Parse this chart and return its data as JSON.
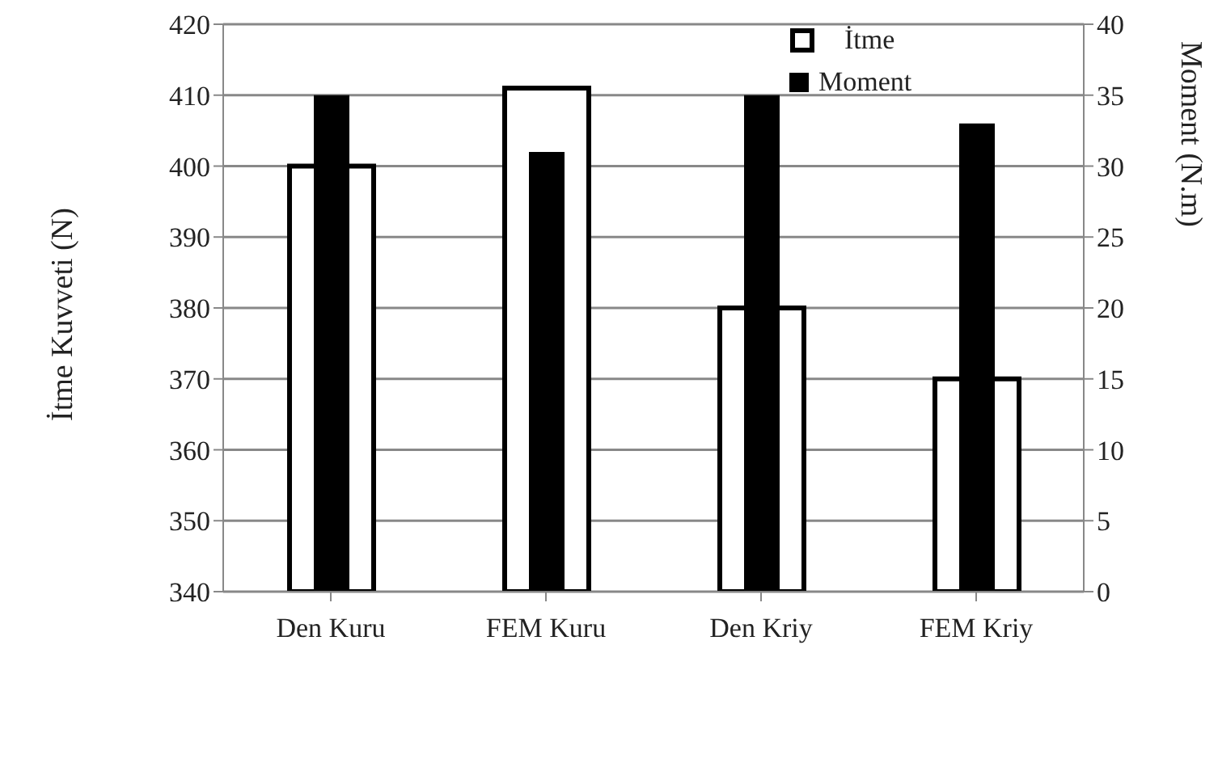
{
  "chart_data": {
    "type": "bar",
    "categories": [
      "Den Kuru",
      "FEM Kuru",
      "Den Kriy",
      "FEM Kriy"
    ],
    "series": [
      {
        "name": "İtme",
        "color": "#ffffff",
        "values": [
          400,
          411,
          380,
          370
        ]
      },
      {
        "name": "Moment",
        "color": "#000000",
        "axis": "y2",
        "values": [
          35,
          31,
          35,
          33
        ]
      }
    ],
    "ylabel": "İtme Kuvveti (N)",
    "y2label": "Moment (N.m)",
    "ylim": [
      340,
      420
    ],
    "yticks": [
      340,
      350,
      360,
      370,
      380,
      390,
      400,
      410,
      420
    ],
    "y2lim": [
      0,
      40
    ],
    "y2ticks": [
      0,
      5,
      10,
      15,
      20,
      25,
      30,
      35,
      40
    ],
    "grid": "y",
    "legend": "top right"
  }
}
